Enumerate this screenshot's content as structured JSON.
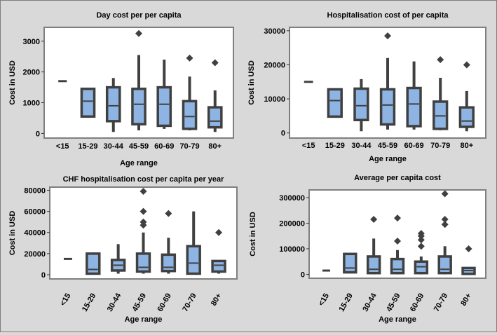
{
  "chart_data": [
    {
      "type": "box",
      "title": "Day cost per per capita",
      "xlabel": "Age range",
      "ylabel": "Cost in USD",
      "ylim": [
        -150,
        3450
      ],
      "yticks": [
        0,
        1000,
        2000,
        3000
      ],
      "categories": [
        "<15",
        "15-29",
        "30-44",
        "45-59",
        "60-69",
        "70-79",
        "80+"
      ],
      "boxes": [
        {
          "min": 1700,
          "q1": 1700,
          "median": 1700,
          "q3": 1700,
          "max": 1700,
          "outliers": []
        },
        {
          "min": 550,
          "q1": 550,
          "median": 1050,
          "q3": 1450,
          "max": 1450,
          "outliers": []
        },
        {
          "min": 50,
          "q1": 400,
          "median": 900,
          "q3": 1500,
          "max": 1800,
          "outliers": []
        },
        {
          "min": 100,
          "q1": 300,
          "median": 950,
          "q3": 1450,
          "max": 2550,
          "outliers": [
            3250
          ]
        },
        {
          "min": 150,
          "q1": 250,
          "median": 950,
          "q3": 1500,
          "max": 2400,
          "outliers": []
        },
        {
          "min": 100,
          "q1": 150,
          "median": 550,
          "q3": 1050,
          "max": 1850,
          "outliers": [
            2450
          ]
        },
        {
          "min": 50,
          "q1": 200,
          "median": 400,
          "q3": 850,
          "max": 1400,
          "outliers": [
            2300
          ]
        }
      ]
    },
    {
      "type": "box",
      "title": "Hospitalisation cost of per capita",
      "xlabel": "Age range",
      "ylabel": "Cost in USD",
      "ylim": [
        -1500,
        31000
      ],
      "yticks": [
        0,
        10000,
        20000,
        30000
      ],
      "categories": [
        "<15",
        "15-29",
        "30-44",
        "45-59",
        "60-69",
        "70-79",
        "80+"
      ],
      "boxes": [
        {
          "min": 15000,
          "q1": 15000,
          "median": 15000,
          "q3": 15000,
          "max": 15000,
          "outliers": []
        },
        {
          "min": 4800,
          "q1": 4800,
          "median": 9500,
          "q3": 12800,
          "max": 12800,
          "outliers": []
        },
        {
          "min": 500,
          "q1": 3800,
          "median": 8000,
          "q3": 13000,
          "max": 15800,
          "outliers": []
        },
        {
          "min": 1000,
          "q1": 2500,
          "median": 8200,
          "q3": 12800,
          "max": 22000,
          "outliers": [
            28500
          ]
        },
        {
          "min": 1000,
          "q1": 2000,
          "median": 8500,
          "q3": 13200,
          "max": 21000,
          "outliers": []
        },
        {
          "min": 800,
          "q1": 1200,
          "median": 5000,
          "q3": 9200,
          "max": 16200,
          "outliers": [
            21500
          ]
        },
        {
          "min": 500,
          "q1": 1800,
          "median": 3500,
          "q3": 7500,
          "max": 12300,
          "outliers": [
            20000
          ]
        }
      ]
    },
    {
      "type": "box",
      "title": "CHF hospitalisation cost per capita per year",
      "xlabel": "Age range",
      "ylabel": "Cost in USD",
      "ylim": [
        -4000,
        83000
      ],
      "yticks": [
        0,
        20000,
        40000,
        60000,
        80000
      ],
      "categories": [
        "<15",
        "15-29",
        "30-44",
        "45-59",
        "60-69",
        "70-79",
        "80+"
      ],
      "boxes": [
        {
          "min": 15000,
          "q1": 15000,
          "median": 15000,
          "q3": 15000,
          "max": 15000,
          "outliers": []
        },
        {
          "min": 1000,
          "q1": 1000,
          "median": 5000,
          "q3": 20000,
          "max": 20000,
          "outliers": []
        },
        {
          "min": 1000,
          "q1": 4000,
          "median": 9000,
          "q3": 14000,
          "max": 29000,
          "outliers": []
        },
        {
          "min": 1000,
          "q1": 3000,
          "median": 7000,
          "q3": 20000,
          "max": 40000,
          "outliers": [
            47000,
            50000,
            60000,
            79000
          ]
        },
        {
          "min": 1000,
          "q1": 3500,
          "median": 7000,
          "q3": 19000,
          "max": 35000,
          "outliers": [
            58000
          ]
        },
        {
          "min": 0,
          "q1": 1000,
          "median": 11000,
          "q3": 27000,
          "max": 60000,
          "outliers": []
        },
        {
          "min": 1000,
          "q1": 3000,
          "median": 9000,
          "q3": 13000,
          "max": 13000,
          "outliers": [
            40000
          ]
        }
      ]
    },
    {
      "type": "box",
      "title": "Average per capita cost",
      "xlabel": "Age range",
      "ylabel": "Cost in USD",
      "ylim": [
        -15000,
        330000
      ],
      "yticks": [
        0,
        100000,
        200000,
        300000
      ],
      "categories": [
        "<15",
        "15-29",
        "30-44",
        "45-59",
        "60-69",
        "70-79",
        "80+"
      ],
      "boxes": [
        {
          "min": 15000,
          "q1": 15000,
          "median": 15000,
          "q3": 15000,
          "max": 15000,
          "outliers": []
        },
        {
          "min": 8000,
          "q1": 8000,
          "median": 25000,
          "q3": 80000,
          "max": 80000,
          "outliers": []
        },
        {
          "min": 0,
          "q1": 5000,
          "median": 20000,
          "q3": 70000,
          "max": 140000,
          "outliers": [
            215000
          ]
        },
        {
          "min": 0,
          "q1": 5000,
          "median": 20000,
          "q3": 60000,
          "max": 95000,
          "outliers": [
            130000,
            220000
          ]
        },
        {
          "min": 0,
          "q1": 5000,
          "median": 30000,
          "q3": 50000,
          "max": 70000,
          "outliers": [
            110000,
            135000,
            150000,
            160000
          ]
        },
        {
          "min": 0,
          "q1": 5000,
          "median": 20000,
          "q3": 70000,
          "max": 110000,
          "outliers": [
            195000,
            215000,
            315000
          ]
        },
        {
          "min": 0,
          "q1": 2000,
          "median": 15000,
          "q3": 25000,
          "max": 25000,
          "outliers": [
            100000
          ]
        }
      ]
    }
  ]
}
